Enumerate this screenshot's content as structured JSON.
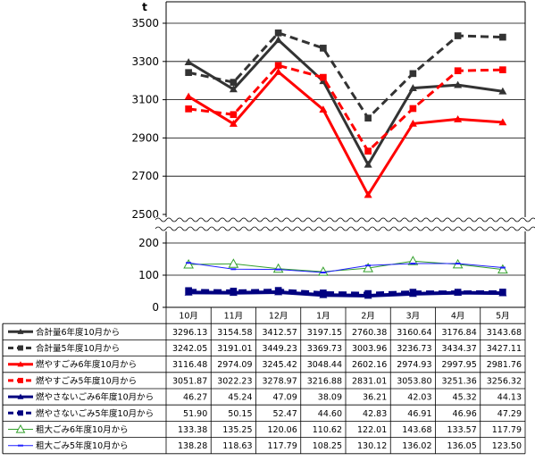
{
  "chart_data": {
    "type": "line",
    "unit": "t",
    "categories": [
      "10月",
      "11月",
      "12月",
      "1月",
      "2月",
      "3月",
      "4月",
      "5月"
    ],
    "y_upper_ticks": [
      3500,
      3300,
      3100,
      2900,
      2700,
      2500
    ],
    "y_lower_ticks": [
      200,
      100,
      0
    ],
    "ylim_upper": [
      2500,
      3500
    ],
    "ylim_lower": [
      0,
      200
    ],
    "axis_break": true,
    "series": [
      {
        "name": "合計量6年度10月から",
        "values": [
          3296.13,
          3154.58,
          3412.57,
          3197.15,
          2760.38,
          3160.64,
          3176.84,
          3143.68
        ],
        "values_text": [
          "3296.13",
          "3154.58",
          "3412.57",
          "3197.15",
          "2760.38",
          "3160.64",
          "3176.84",
          "3143.68"
        ],
        "color": "#333333",
        "dash": "solid",
        "marker": "triangle-filled",
        "panel": "upper"
      },
      {
        "name": "合計量5年度10月から",
        "values": [
          3242.05,
          3191.01,
          3449.23,
          3369.73,
          3003.96,
          3236.73,
          3434.37,
          3427.11
        ],
        "values_text": [
          "3242.05",
          "3191.01",
          "3449.23",
          "3369.73",
          "3003.96",
          "3236.73",
          "3434.37",
          "3427.11"
        ],
        "color": "#333333",
        "dash": "dashed",
        "marker": "square",
        "panel": "upper"
      },
      {
        "name": "燃やすごみ6年度10月から",
        "values": [
          3116.48,
          2974.09,
          3245.42,
          3048.44,
          2602.16,
          2974.93,
          2997.95,
          2981.76
        ],
        "values_text": [
          "3116.48",
          "2974.09",
          "3245.42",
          "3048.44",
          "2602.16",
          "2974.93",
          "2997.95",
          "2981.76"
        ],
        "color": "#ff0000",
        "dash": "solid",
        "marker": "triangle-filled",
        "panel": "upper"
      },
      {
        "name": "燃やすごみ5年度10月から",
        "values": [
          3051.87,
          3022.23,
          3278.97,
          3216.88,
          2831.01,
          3053.8,
          3251.36,
          3256.32
        ],
        "values_text": [
          "3051.87",
          "3022.23",
          "3278.97",
          "3216.88",
          "2831.01",
          "3053.80",
          "3251.36",
          "3256.32"
        ],
        "color": "#ff0000",
        "dash": "dashed",
        "marker": "square",
        "panel": "upper"
      },
      {
        "name": "燃やさないごみ6年度10月から",
        "values": [
          46.27,
          45.24,
          47.09,
          38.09,
          36.21,
          42.03,
          45.32,
          44.13
        ],
        "values_text": [
          "46.27",
          "45.24",
          "47.09",
          "38.09",
          "36.21",
          "42.03",
          "45.32",
          "44.13"
        ],
        "color": "#000080",
        "dash": "solid",
        "marker": "triangle-filled",
        "panel": "lower"
      },
      {
        "name": "燃やさないごみ5年度10月から",
        "values": [
          51.9,
          50.15,
          52.47,
          44.6,
          42.83,
          46.91,
          46.96,
          47.29
        ],
        "values_text": [
          "51.90",
          "50.15",
          "52.47",
          "44.60",
          "42.83",
          "46.91",
          "46.96",
          "47.29"
        ],
        "color": "#000080",
        "dash": "dashed",
        "marker": "square",
        "panel": "lower"
      },
      {
        "name": "粗大ごみ6年度10月から",
        "values": [
          133.38,
          135.25,
          120.06,
          110.62,
          122.01,
          143.68,
          133.57,
          117.79
        ],
        "values_text": [
          "133.38",
          "135.25",
          "120.06",
          "110.62",
          "122.01",
          "143.68",
          "133.57",
          "117.79"
        ],
        "color": "#33a02c",
        "dash": "solid",
        "marker": "triangle-open",
        "panel": "lower"
      },
      {
        "name": "粗大ごみ5年度10月から",
        "values": [
          138.28,
          118.63,
          117.79,
          108.25,
          130.12,
          136.02,
          136.05,
          123.5
        ],
        "values_text": [
          "138.28",
          "118.63",
          "117.79",
          "108.25",
          "130.12",
          "136.02",
          "136.05",
          "123.50"
        ],
        "color": "#1f1fff",
        "dash": "solid",
        "marker": "dash",
        "panel": "lower"
      }
    ]
  }
}
